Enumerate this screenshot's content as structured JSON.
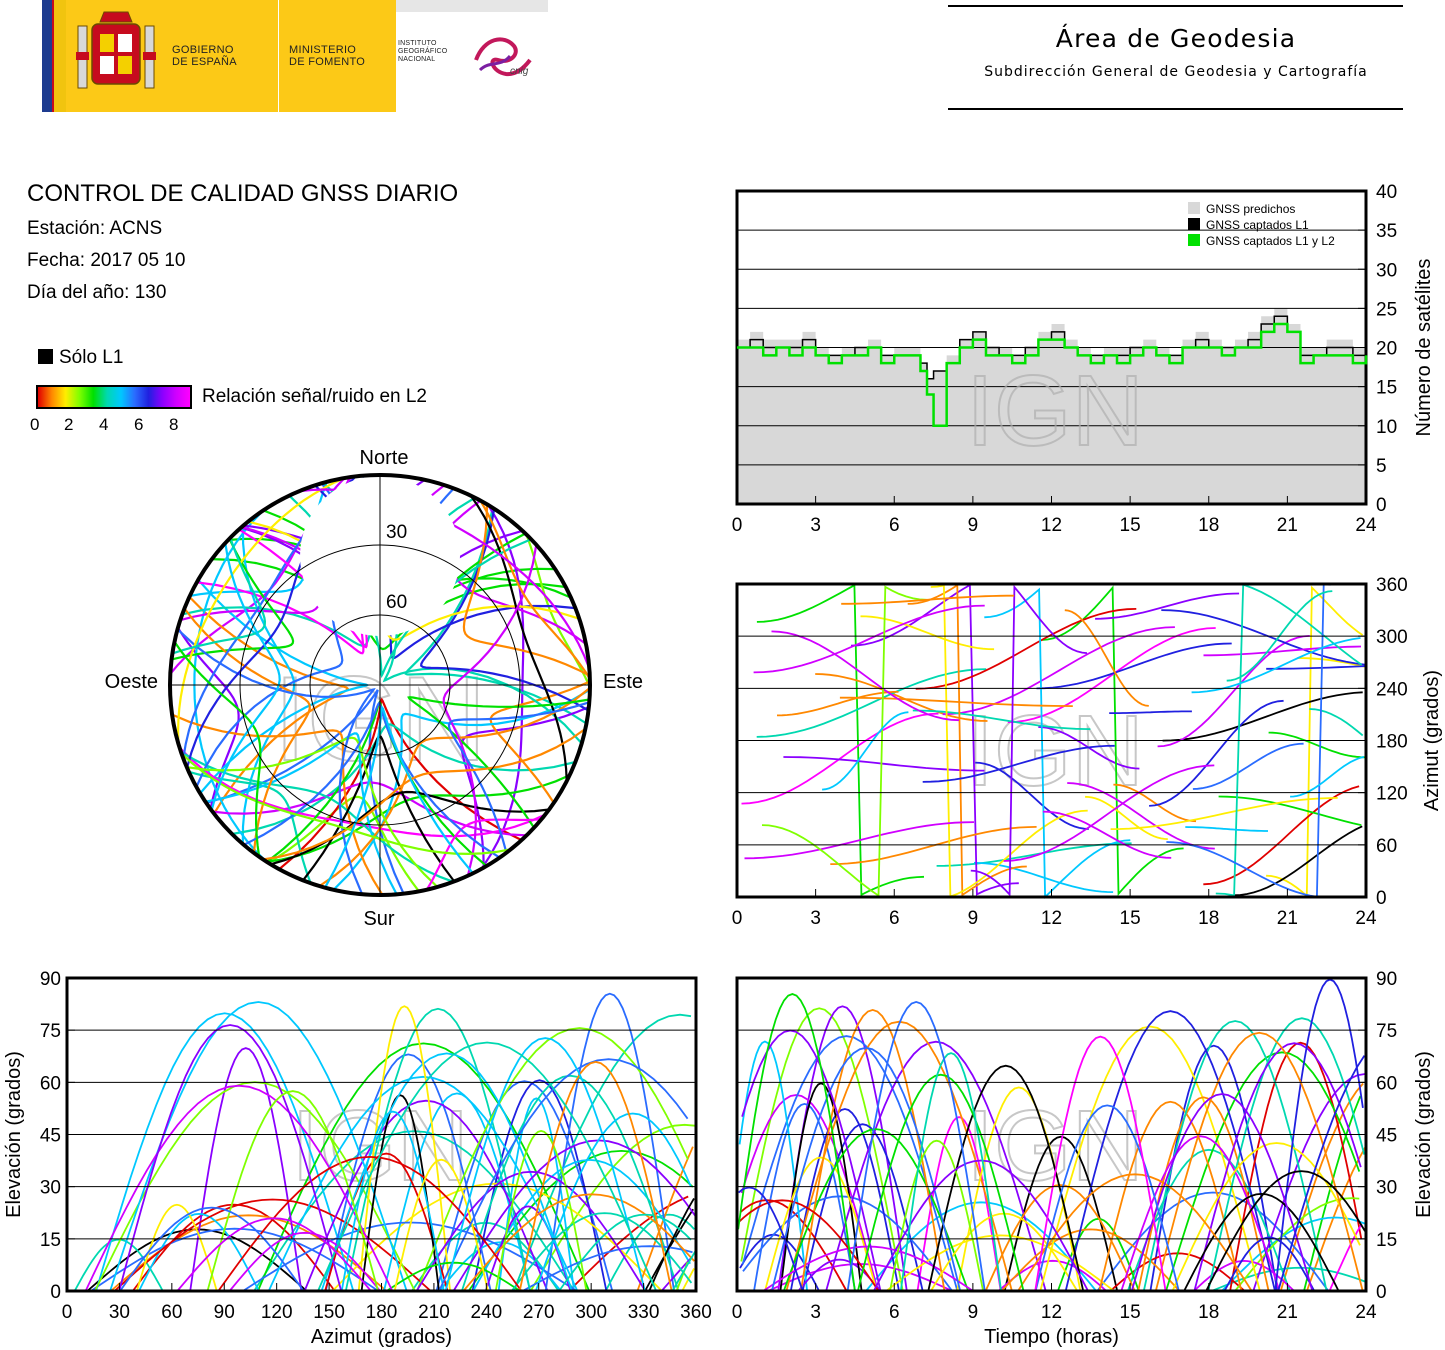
{
  "header": {
    "gov_line1": "GOBIERNO",
    "gov_line2": "DE ESPAÑA",
    "ministry_line1": "MINISTERIO",
    "ministry_line2": "DE FOMENTO",
    "ign_line1": "INSTITUTO",
    "ign_line2": "GEOGRÁFICO",
    "ign_line3": "NACIONAL",
    "cnig_logo_text": "cnig",
    "area_title": "Área de Geodesia",
    "area_subtitle": "Subdirección General de Geodesia y Cartografía"
  },
  "report": {
    "title": "CONTROL DE CALIDAD GNSS DIARIO",
    "station": "Estación: ACNS",
    "date": "Fecha: 2017 05 10",
    "doy": "Día del año: 130"
  },
  "legend": {
    "l1_only": "Sólo L1",
    "snr_label": "Relación señal/ruido en L2",
    "snr_ticks": [
      "0",
      "2",
      "4",
      "6",
      "8"
    ]
  },
  "colors": {
    "l1_only": "#000000",
    "l1l2": "#00e000",
    "predicted": "#d8d8d8",
    "snr_scale": [
      "#e00000",
      "#ff8800",
      "#ffee00",
      "#7fff00",
      "#00e000",
      "#00d8b0",
      "#00c8ff",
      "#2a6cff",
      "#2020e0",
      "#8a00ff",
      "#d000ff",
      "#ff00ff"
    ]
  },
  "watermark": "IGN",
  "chart_data": [
    {
      "id": "satellite_count",
      "type": "line",
      "x_ticks": [
        "0",
        "3",
        "6",
        "9",
        "12",
        "15",
        "18",
        "21",
        "24"
      ],
      "y_ticks": [
        "0",
        "5",
        "10",
        "15",
        "20",
        "25",
        "30",
        "35",
        "40"
      ],
      "ylabel": "Número de satélites",
      "xlim": [
        0,
        24
      ],
      "ylim": [
        0,
        40
      ],
      "grid": true,
      "legend_position": "top-right",
      "legend": [
        "GNSS predichos",
        "GNSS captados L1",
        "GNSS captados L1 y L2"
      ],
      "x": [
        0,
        0.5,
        1,
        1.5,
        2,
        2.5,
        3,
        3.5,
        4,
        4.5,
        5,
        5.5,
        6,
        6.5,
        7,
        7.25,
        7.5,
        8,
        8.5,
        9,
        9.5,
        10,
        10.5,
        11,
        11.5,
        12,
        12.5,
        13,
        13.5,
        14,
        14.5,
        15,
        15.5,
        16,
        16.5,
        17,
        17.5,
        18,
        18.5,
        19,
        19.5,
        20,
        20.5,
        21,
        21.5,
        22,
        22.5,
        23,
        23.5,
        24
      ],
      "series": [
        {
          "name": "GNSS predichos",
          "values": [
            21,
            22,
            21,
            21,
            21,
            22,
            20,
            19,
            20,
            20,
            21,
            19,
            20,
            20,
            18,
            16,
            17,
            19,
            21,
            22,
            20,
            20,
            19,
            20,
            22,
            23,
            21,
            20,
            19,
            20,
            20,
            20,
            21,
            20,
            19,
            21,
            22,
            21,
            20,
            21,
            22,
            24,
            25,
            23,
            20,
            20,
            21,
            21,
            20,
            21
          ]
        },
        {
          "name": "GNSS captados L1",
          "values": [
            20,
            21,
            20,
            20,
            20,
            21,
            19,
            19,
            19,
            20,
            20,
            19,
            19,
            19,
            18,
            16,
            17,
            18,
            21,
            22,
            20,
            19,
            19,
            20,
            21,
            22,
            20,
            19,
            19,
            19,
            19,
            20,
            20,
            19,
            19,
            20,
            21,
            20,
            20,
            20,
            21,
            23,
            24,
            22,
            19,
            19,
            20,
            20,
            19,
            20
          ]
        },
        {
          "name": "GNSS captados L1 y L2",
          "values": [
            20,
            20,
            19,
            20,
            19,
            20,
            19,
            18,
            19,
            19,
            20,
            18,
            19,
            19,
            17,
            14,
            10,
            18,
            20,
            21,
            19,
            19,
            18,
            19,
            21,
            21,
            20,
            19,
            18,
            19,
            18,
            19,
            20,
            19,
            18,
            20,
            20,
            20,
            19,
            20,
            20,
            22,
            23,
            22,
            18,
            19,
            19,
            19,
            18,
            19
          ]
        }
      ]
    },
    {
      "id": "sky_plot",
      "type": "scatter",
      "compass_labels": [
        "Norte",
        "Este",
        "Sur",
        "Oeste"
      ],
      "elevation_rings": [
        "30",
        "60"
      ],
      "note_values": "elevation tracks colored by L2 SNR"
    },
    {
      "id": "azimuth_vs_time",
      "type": "scatter",
      "x_ticks": [
        "0",
        "3",
        "6",
        "9",
        "12",
        "15",
        "18",
        "21",
        "24"
      ],
      "y_ticks": [
        "0",
        "60",
        "120",
        "180",
        "240",
        "300",
        "360"
      ],
      "ylabel": "Azimut (grados)",
      "xlim": [
        0,
        24
      ],
      "ylim": [
        0,
        360
      ],
      "grid": true
    },
    {
      "id": "elevation_vs_azimuth",
      "type": "scatter",
      "x_ticks": [
        "0",
        "30",
        "60",
        "90",
        "120",
        "150",
        "180",
        "210",
        "240",
        "270",
        "300",
        "330",
        "360"
      ],
      "y_ticks": [
        "0",
        "15",
        "30",
        "45",
        "60",
        "75",
        "90"
      ],
      "xlabel": "Azimut (grados)",
      "ylabel": "Elevación (grados)",
      "xlim": [
        0,
        360
      ],
      "ylim": [
        0,
        90
      ],
      "grid": true
    },
    {
      "id": "elevation_vs_time",
      "type": "line",
      "x_ticks": [
        "0",
        "3",
        "6",
        "9",
        "12",
        "15",
        "18",
        "21",
        "24"
      ],
      "y_ticks": [
        "0",
        "15",
        "30",
        "45",
        "60",
        "75",
        "90"
      ],
      "xlabel": "Tiempo (horas)",
      "ylabel": "Elevación (grados)",
      "xlim": [
        0,
        24
      ],
      "ylim": [
        0,
        90
      ],
      "grid": true
    }
  ]
}
